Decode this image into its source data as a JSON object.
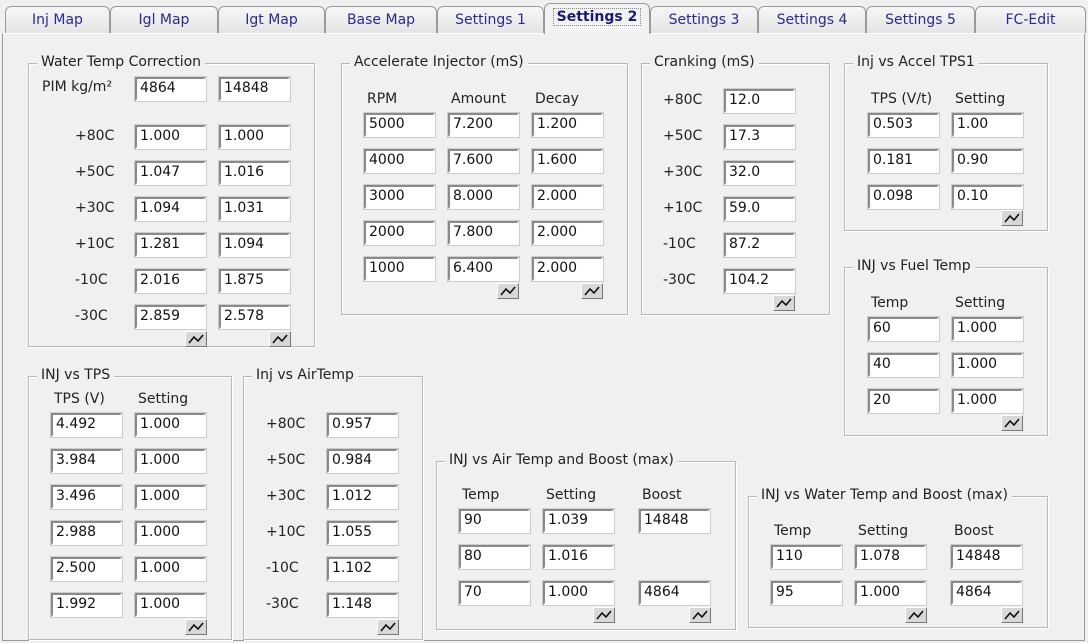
{
  "tabs": [
    "Inj Map",
    "Igl Map",
    "Igt Map",
    "Base Map",
    "Settings 1",
    "Settings 2",
    "Settings 3",
    "Settings 4",
    "Settings 5",
    "FC-Edit"
  ],
  "active_tab": "Settings 2",
  "groups": {
    "water_temp": {
      "title": "Water Temp Correction",
      "pim_label": "PIM kg/m²",
      "pim": [
        "4864",
        "14848"
      ],
      "row_labels": [
        "+80C",
        "+50C",
        "+30C",
        "+10C",
        "-10C",
        "-30C"
      ],
      "rows": [
        [
          "1.000",
          "1.000"
        ],
        [
          "1.047",
          "1.016"
        ],
        [
          "1.094",
          "1.031"
        ],
        [
          "1.281",
          "1.094"
        ],
        [
          "2.016",
          "1.875"
        ],
        [
          "2.859",
          "2.578"
        ]
      ]
    },
    "accel_inj": {
      "title": "Accelerate Injector (mS)",
      "headers": [
        "RPM",
        "Amount",
        "Decay"
      ],
      "rows": [
        [
          "5000",
          "7.200",
          "1.200"
        ],
        [
          "4000",
          "7.600",
          "1.600"
        ],
        [
          "3000",
          "8.000",
          "2.000"
        ],
        [
          "2000",
          "7.800",
          "2.000"
        ],
        [
          "1000",
          "6.400",
          "2.000"
        ]
      ]
    },
    "cranking": {
      "title": "Cranking (mS)",
      "row_labels": [
        "+80C",
        "+50C",
        "+30C",
        "+10C",
        "-10C",
        "-30C"
      ],
      "rows": [
        [
          "12.0"
        ],
        [
          "17.3"
        ],
        [
          "32.0"
        ],
        [
          "59.0"
        ],
        [
          "87.2"
        ],
        [
          "104.2"
        ]
      ]
    },
    "inj_accel_tps1": {
      "title": "Inj vs Accel TPS1",
      "headers": [
        "TPS (V/t)",
        "Setting"
      ],
      "rows": [
        [
          "0.503",
          "1.00"
        ],
        [
          "0.181",
          "0.90"
        ],
        [
          "0.098",
          "0.10"
        ]
      ]
    },
    "inj_fuel_temp": {
      "title": "INJ vs Fuel Temp",
      "headers": [
        "Temp",
        "Setting"
      ],
      "rows": [
        [
          "60",
          "1.000"
        ],
        [
          "40",
          "1.000"
        ],
        [
          "20",
          "1.000"
        ]
      ]
    },
    "inj_tps": {
      "title": "INJ vs TPS",
      "headers": [
        "TPS (V)",
        "Setting"
      ],
      "rows": [
        [
          "4.492",
          "1.000"
        ],
        [
          "3.984",
          "1.000"
        ],
        [
          "3.496",
          "1.000"
        ],
        [
          "2.988",
          "1.000"
        ],
        [
          "2.500",
          "1.000"
        ],
        [
          "1.992",
          "1.000"
        ]
      ]
    },
    "inj_airtemp": {
      "title": "Inj vs AirTemp",
      "row_labels": [
        "+80C",
        "+50C",
        "+30C",
        "+10C",
        "-10C",
        "-30C"
      ],
      "rows": [
        [
          "0.957"
        ],
        [
          "0.984"
        ],
        [
          "1.012"
        ],
        [
          "1.055"
        ],
        [
          "1.102"
        ],
        [
          "1.148"
        ]
      ]
    },
    "inj_air_boost": {
      "title": "INJ vs Air Temp and Boost (max)",
      "headers": [
        "Temp",
        "Setting",
        "Boost"
      ],
      "rows": [
        [
          "90",
          "1.039",
          "14848"
        ],
        [
          "80",
          "1.016",
          null
        ],
        [
          "70",
          "1.000",
          "4864"
        ]
      ]
    },
    "inj_water_boost": {
      "title": "INJ vs Water Temp and Boost (max)",
      "headers": [
        "Temp",
        "Setting",
        "Boost"
      ],
      "rows": [
        [
          "110",
          "1.078",
          "14848"
        ],
        [
          "95",
          "1.000",
          "4864"
        ]
      ]
    }
  },
  "graph_button_icon": "line-graph-icon",
  "colors": {
    "tab_text": "#2a2a90",
    "background": "#f0f0f0"
  }
}
